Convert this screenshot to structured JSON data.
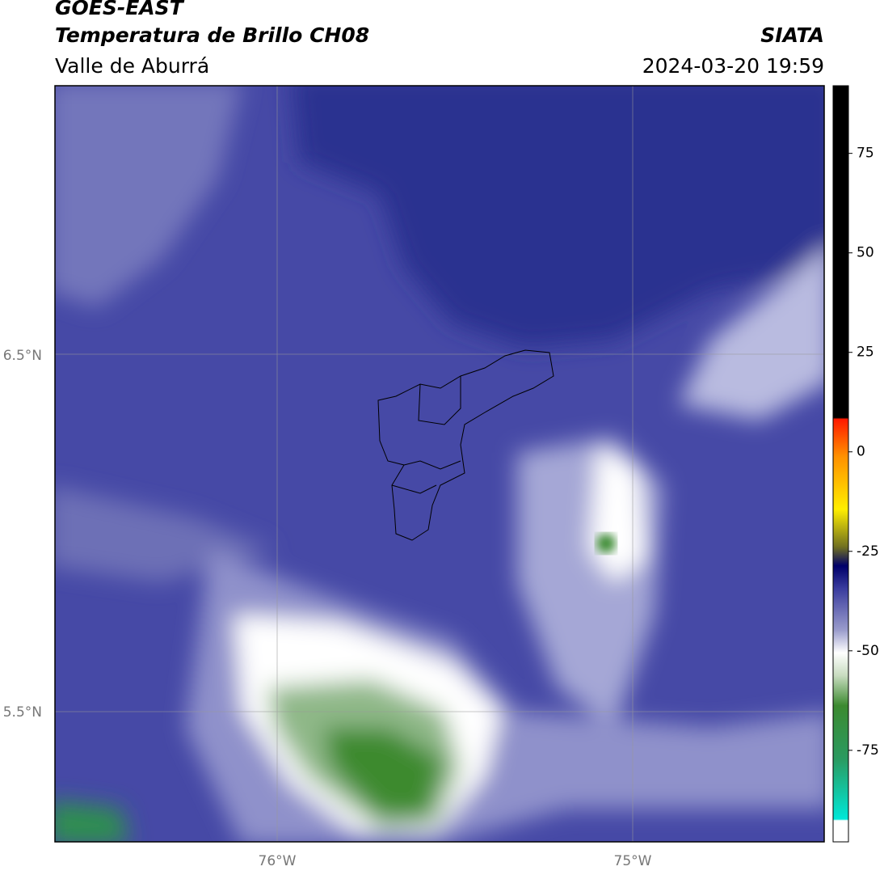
{
  "header": {
    "title": "GOES-EAST",
    "subtitle": "Temperatura de Brillo CH08",
    "region": "Valle de Aburrá",
    "source": "SIATA",
    "datetime": "2024-03-20 19:59"
  },
  "map": {
    "lat_labels": [
      "6.5°N",
      "5.5°N"
    ],
    "lon_labels": [
      "76°W",
      "75°W"
    ]
  },
  "colorbar": {
    "clim": [
      -98,
      92
    ],
    "ticks": [
      75,
      50,
      25,
      0,
      -25,
      -50,
      -75
    ]
  }
}
